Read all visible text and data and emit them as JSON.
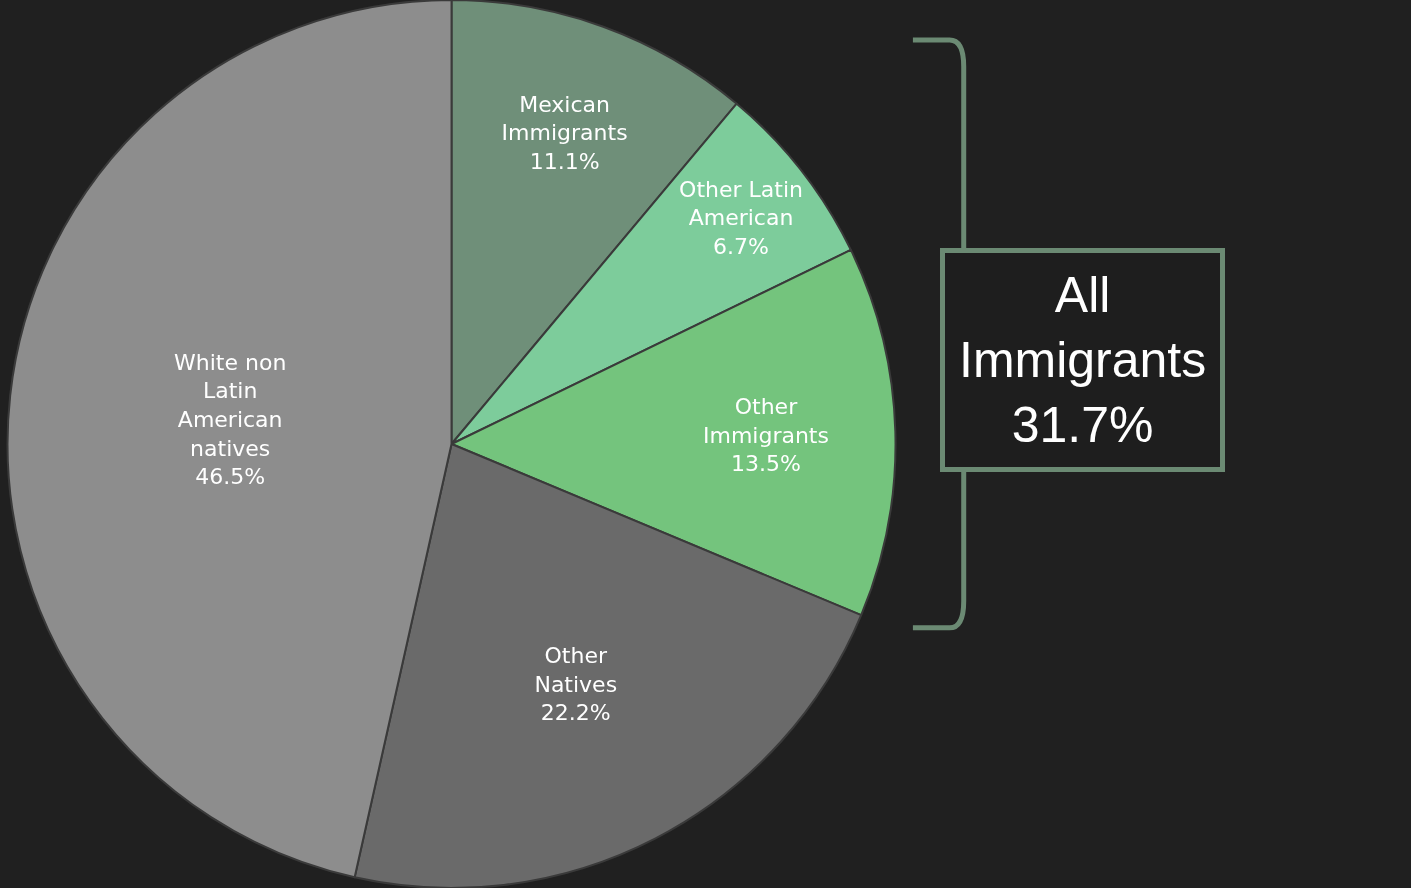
{
  "chart_data": {
    "type": "pie",
    "categories": [
      "Mexican Immigrants",
      "Other Latin American",
      "Other Immigrants",
      "Other Natives",
      "White non Latin American natives"
    ],
    "values": [
      11.1,
      6.7,
      13.5,
      22.2,
      46.5
    ],
    "value_labels": [
      "11.1%",
      "6.7%",
      "13.5%",
      "22.2%",
      "46.5%"
    ],
    "colors": [
      "#6f8f79",
      "#7dcc9b",
      "#74c47d",
      "#6a6a6a",
      "#8d8d8d"
    ],
    "annotations": [
      "All Immigrants 31.7%"
    ],
    "legend": false
  }
}
